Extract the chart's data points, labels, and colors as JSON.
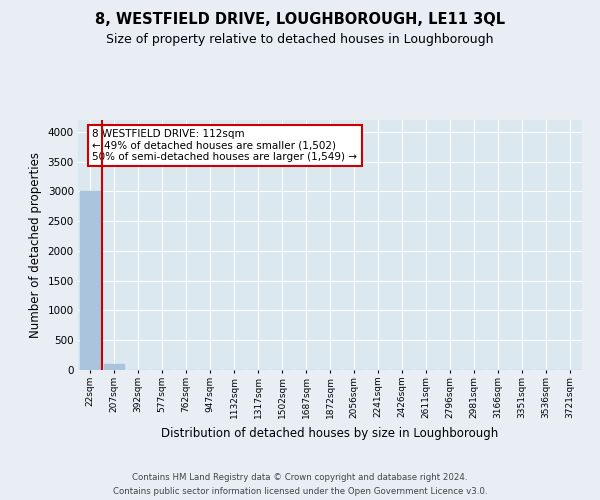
{
  "title1": "8, WESTFIELD DRIVE, LOUGHBOROUGH, LE11 3QL",
  "title2": "Size of property relative to detached houses in Loughborough",
  "xlabel": "Distribution of detached houses by size in Loughborough",
  "ylabel": "Number of detached properties",
  "footer1": "Contains HM Land Registry data © Crown copyright and database right 2024.",
  "footer2": "Contains public sector information licensed under the Open Government Licence v3.0.",
  "categories": [
    "22sqm",
    "207sqm",
    "392sqm",
    "577sqm",
    "762sqm",
    "947sqm",
    "1132sqm",
    "1317sqm",
    "1502sqm",
    "1687sqm",
    "1872sqm",
    "2056sqm",
    "2241sqm",
    "2426sqm",
    "2611sqm",
    "2796sqm",
    "2981sqm",
    "3166sqm",
    "3351sqm",
    "3536sqm",
    "3721sqm"
  ],
  "values": [
    3000,
    100,
    0,
    0,
    0,
    0,
    0,
    0,
    0,
    0,
    0,
    0,
    0,
    0,
    0,
    0,
    0,
    0,
    0,
    0,
    0
  ],
  "bar_color": "#aac4dd",
  "vline_color": "#cc0000",
  "annotation_text": "8 WESTFIELD DRIVE: 112sqm\n← 49% of detached houses are smaller (1,502)\n50% of semi-detached houses are larger (1,549) →",
  "annotation_box_color": "#ffffff",
  "annotation_box_edge_color": "#cc0000",
  "ylim": [
    0,
    4200
  ],
  "yticks": [
    0,
    500,
    1000,
    1500,
    2000,
    2500,
    3000,
    3500,
    4000
  ],
  "bg_color": "#e8eef4",
  "plot_bg_color": "#dce8f0",
  "grid_color": "#ffffff"
}
